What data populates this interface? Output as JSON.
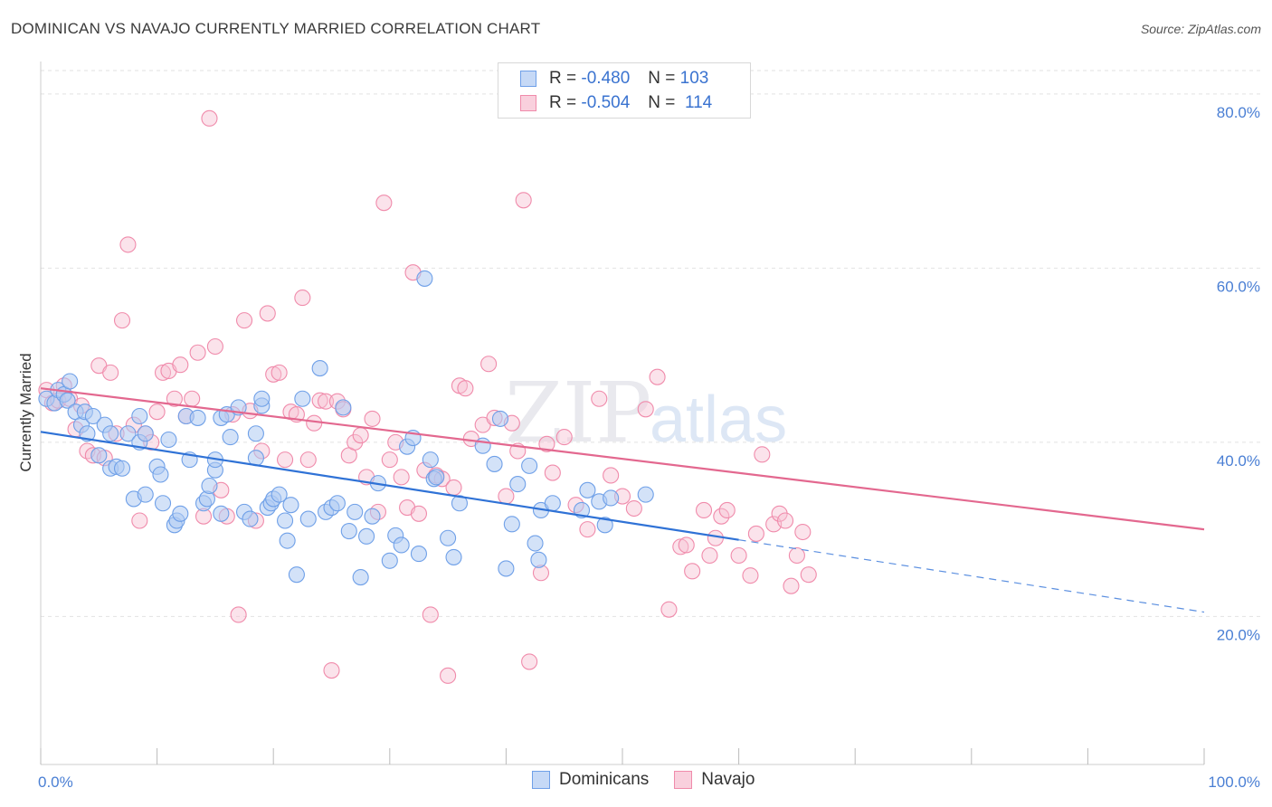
{
  "title": "DOMINICAN VS NAVAJO CURRENTLY MARRIED CORRELATION CHART",
  "source": "Source: ZipAtlas.com",
  "watermark": {
    "zip": "ZIP",
    "atlas": "atlas"
  },
  "legend": {
    "rows": [
      {
        "r_label": "R =",
        "r_value": "-0.480",
        "n_label": "N =",
        "n_value": "103",
        "color": "#6fa0e8"
      },
      {
        "r_label": "R =",
        "r_value": "-0.504",
        "n_label": "N =",
        "n_value": "114",
        "color": "#f08bab"
      }
    ]
  },
  "bottom_legend": [
    {
      "label": "Dominicans",
      "color": "#6fa0e8"
    },
    {
      "label": "Navajo",
      "color": "#f08bab"
    }
  ],
  "chart_data": {
    "type": "scatter",
    "title": "DOMINICAN VS NAVAJO CURRENTLY MARRIED CORRELATION CHART",
    "xlabel": "",
    "ylabel": "Currently Married",
    "xlim": [
      0,
      100
    ],
    "ylim": [
      3,
      83
    ],
    "x_tick_labels": [
      "0.0%",
      "100.0%"
    ],
    "y_ticks": [
      20,
      40,
      60,
      80
    ],
    "y_tick_labels": [
      "20.0%",
      "40.0%",
      "60.0%",
      "80.0%"
    ],
    "grid": true,
    "legend_position": "top-center",
    "series": [
      {
        "name": "Dominicans",
        "color": "#6fa0e8",
        "trend": {
          "x0": 0,
          "y0": 41.2,
          "x1": 60,
          "y1": 28.8,
          "dash_to_x": 100,
          "dash_to_y": 20.5
        },
        "points": [
          [
            0.5,
            45
          ],
          [
            1.2,
            44.5
          ],
          [
            1.5,
            46
          ],
          [
            2,
            45.5
          ],
          [
            2.3,
            44.8
          ],
          [
            2.5,
            47
          ],
          [
            3,
            43.5
          ],
          [
            3.5,
            42
          ],
          [
            3.8,
            43.5
          ],
          [
            4,
            41
          ],
          [
            4.5,
            43
          ],
          [
            5,
            38.5
          ],
          [
            5.5,
            42
          ],
          [
            6,
            41
          ],
          [
            6,
            37
          ],
          [
            6.5,
            37.2
          ],
          [
            7,
            37
          ],
          [
            7.5,
            41
          ],
          [
            8,
            33.5
          ],
          [
            8.5,
            43
          ],
          [
            8.5,
            40
          ],
          [
            9,
            41
          ],
          [
            9,
            34
          ],
          [
            10,
            37.2
          ],
          [
            10.3,
            36.3
          ],
          [
            10.5,
            33
          ],
          [
            11,
            40.3
          ],
          [
            11.5,
            30.5
          ],
          [
            11.7,
            31
          ],
          [
            12,
            31.8
          ],
          [
            12.5,
            43
          ],
          [
            12.8,
            38
          ],
          [
            13.5,
            42.8
          ],
          [
            14,
            33
          ],
          [
            14.3,
            33.5
          ],
          [
            14.5,
            35
          ],
          [
            15,
            36.8
          ],
          [
            15,
            38
          ],
          [
            15.5,
            31.8
          ],
          [
            15.5,
            42.8
          ],
          [
            16,
            43.2
          ],
          [
            16.3,
            40.6
          ],
          [
            17,
            44
          ],
          [
            17.5,
            32
          ],
          [
            18,
            31.2
          ],
          [
            18.5,
            38.2
          ],
          [
            18.5,
            41
          ],
          [
            19,
            44.2
          ],
          [
            19,
            45
          ],
          [
            19.5,
            32.5
          ],
          [
            19.8,
            33
          ],
          [
            20,
            33.5
          ],
          [
            20.5,
            34
          ],
          [
            21,
            31
          ],
          [
            21.2,
            28.7
          ],
          [
            21.5,
            32.8
          ],
          [
            22,
            24.8
          ],
          [
            22.5,
            45
          ],
          [
            23,
            31.2
          ],
          [
            24,
            48.5
          ],
          [
            24.5,
            32
          ],
          [
            25,
            32.5
          ],
          [
            25.5,
            33
          ],
          [
            26,
            44
          ],
          [
            26.5,
            29.8
          ],
          [
            27,
            32
          ],
          [
            27.5,
            24.5
          ],
          [
            28,
            29.2
          ],
          [
            28.5,
            31.5
          ],
          [
            29,
            35.3
          ],
          [
            30,
            26.4
          ],
          [
            30.5,
            29.3
          ],
          [
            31,
            28.2
          ],
          [
            31.5,
            39.5
          ],
          [
            32,
            40.5
          ],
          [
            32.5,
            27.2
          ],
          [
            33,
            58.8
          ],
          [
            33.5,
            38
          ],
          [
            33.8,
            35.8
          ],
          [
            34,
            36
          ],
          [
            35,
            29
          ],
          [
            35.5,
            26.8
          ],
          [
            36,
            33
          ],
          [
            38,
            39.6
          ],
          [
            39,
            37.5
          ],
          [
            39.5,
            42.7
          ],
          [
            40,
            25.5
          ],
          [
            40.5,
            30.6
          ],
          [
            41,
            35.2
          ],
          [
            42,
            37.3
          ],
          [
            42.5,
            28.4
          ],
          [
            42.8,
            26.5
          ],
          [
            43,
            32.2
          ],
          [
            44,
            33
          ],
          [
            46.5,
            32.2
          ],
          [
            47,
            34.5
          ],
          [
            48,
            33.2
          ],
          [
            48.5,
            30.5
          ],
          [
            49,
            33.6
          ],
          [
            52,
            34
          ]
        ]
      },
      {
        "name": "Navajo",
        "color": "#f08bab",
        "trend": {
          "x0": 0,
          "y0": 46.2,
          "x1": 100,
          "y1": 30.0
        },
        "points": [
          [
            0.5,
            46
          ],
          [
            1,
            44.5
          ],
          [
            1.5,
            44.8
          ],
          [
            2,
            46.5
          ],
          [
            2.5,
            45
          ],
          [
            3,
            41.5
          ],
          [
            3.5,
            44.2
          ],
          [
            4,
            39
          ],
          [
            4.5,
            38.5
          ],
          [
            5,
            48.8
          ],
          [
            5.5,
            38.2
          ],
          [
            6,
            48
          ],
          [
            6.5,
            41
          ],
          [
            7,
            54
          ],
          [
            7.5,
            62.7
          ],
          [
            8,
            42
          ],
          [
            8.5,
            31
          ],
          [
            9,
            41
          ],
          [
            9.5,
            40
          ],
          [
            10,
            43.5
          ],
          [
            10.5,
            48
          ],
          [
            11,
            48.2
          ],
          [
            11.5,
            45
          ],
          [
            12,
            48.9
          ],
          [
            12.5,
            43
          ],
          [
            13,
            45
          ],
          [
            13.5,
            50.3
          ],
          [
            14,
            31.5
          ],
          [
            14.5,
            77.2
          ],
          [
            15,
            51
          ],
          [
            15.5,
            34.5
          ],
          [
            16,
            31.5
          ],
          [
            16.5,
            43.2
          ],
          [
            17,
            20.2
          ],
          [
            17.5,
            54
          ],
          [
            18,
            43.6
          ],
          [
            18.5,
            31
          ],
          [
            19,
            39
          ],
          [
            19.5,
            54.8
          ],
          [
            20,
            47.8
          ],
          [
            20.5,
            48
          ],
          [
            21,
            38
          ],
          [
            21.5,
            43.5
          ],
          [
            22,
            43.2
          ],
          [
            22.5,
            56.6
          ],
          [
            23,
            38
          ],
          [
            23.5,
            42.2
          ],
          [
            24,
            44.8
          ],
          [
            24.5,
            44.7
          ],
          [
            25,
            13.8
          ],
          [
            25.5,
            44.7
          ],
          [
            26,
            43.8
          ],
          [
            26.5,
            38.5
          ],
          [
            27,
            40
          ],
          [
            27.5,
            40.8
          ],
          [
            28,
            36
          ],
          [
            28.5,
            42.7
          ],
          [
            29,
            32
          ],
          [
            29.5,
            67.5
          ],
          [
            30,
            38
          ],
          [
            30.5,
            40
          ],
          [
            31,
            36
          ],
          [
            31.5,
            32.5
          ],
          [
            32,
            59.5
          ],
          [
            32.5,
            31.8
          ],
          [
            33,
            36.8
          ],
          [
            33.5,
            20.2
          ],
          [
            34,
            36.2
          ],
          [
            34.5,
            35.8
          ],
          [
            35,
            13.2
          ],
          [
            35.5,
            34.8
          ],
          [
            36,
            46.5
          ],
          [
            36.5,
            46.2
          ],
          [
            37,
            40.4
          ],
          [
            38,
            42
          ],
          [
            38.5,
            49
          ],
          [
            39,
            42.8
          ],
          [
            40,
            33.8
          ],
          [
            40.5,
            42.2
          ],
          [
            41,
            39
          ],
          [
            41.5,
            67.8
          ],
          [
            42,
            14.8
          ],
          [
            43,
            25
          ],
          [
            43.5,
            39.8
          ],
          [
            44,
            36.5
          ],
          [
            45,
            40.6
          ],
          [
            46,
            32.8
          ],
          [
            47,
            30
          ],
          [
            48,
            45
          ],
          [
            49,
            36.2
          ],
          [
            50,
            33.8
          ],
          [
            51,
            32.4
          ],
          [
            52,
            43.8
          ],
          [
            53,
            47.5
          ],
          [
            54,
            20.8
          ],
          [
            55,
            28
          ],
          [
            55.5,
            28.2
          ],
          [
            56,
            25.2
          ],
          [
            57,
            32.2
          ],
          [
            57.5,
            27
          ],
          [
            58,
            29
          ],
          [
            58.5,
            31.5
          ],
          [
            59,
            32.2
          ],
          [
            60,
            27
          ],
          [
            61,
            24.7
          ],
          [
            61.5,
            29.5
          ],
          [
            62,
            38.6
          ],
          [
            63,
            30.6
          ],
          [
            63.5,
            31.8
          ],
          [
            64,
            31
          ],
          [
            64.5,
            23.5
          ],
          [
            65,
            27
          ],
          [
            65.5,
            29.7
          ],
          [
            66,
            24.8
          ]
        ]
      }
    ]
  }
}
